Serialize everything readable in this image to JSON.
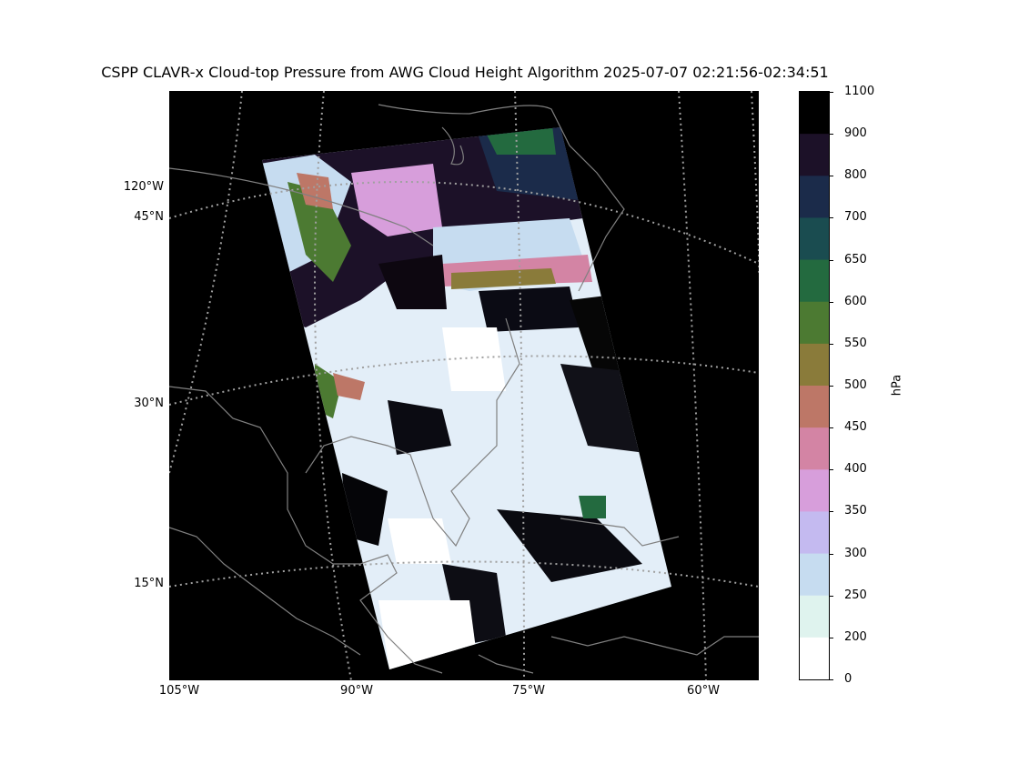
{
  "title": "CSPP CLAVR-x Cloud-top Pressure from AWG Cloud Height Algorithm 2025-07-07 02:21:56-02:34:51",
  "map": {
    "lon_labels": [
      "105°W",
      "90°W",
      "75°W",
      "60°W"
    ],
    "lat_labels": [
      "45°N",
      "30°N",
      "15°N"
    ],
    "extra_labels": [
      "120°W"
    ],
    "background": "#000000",
    "coastline_color": "#808080",
    "graticule_color": "#a0a0a0"
  },
  "colorbar": {
    "unit": "hPa",
    "tick_labels": [
      "1100",
      "900",
      "800",
      "700",
      "650",
      "600",
      "550",
      "500",
      "450",
      "400",
      "350",
      "300",
      "250",
      "200",
      "0"
    ],
    "colors_top_to_bottom": [
      "#000000",
      "#1c1128",
      "#1b2b4a",
      "#1a4c50",
      "#236a3f",
      "#4c7a32",
      "#8a7b3a",
      "#bd7767",
      "#d384a4",
      "#d79edb",
      "#c4baf0",
      "#c6dcf0",
      "#dff3ee",
      "#ffffff"
    ]
  }
}
